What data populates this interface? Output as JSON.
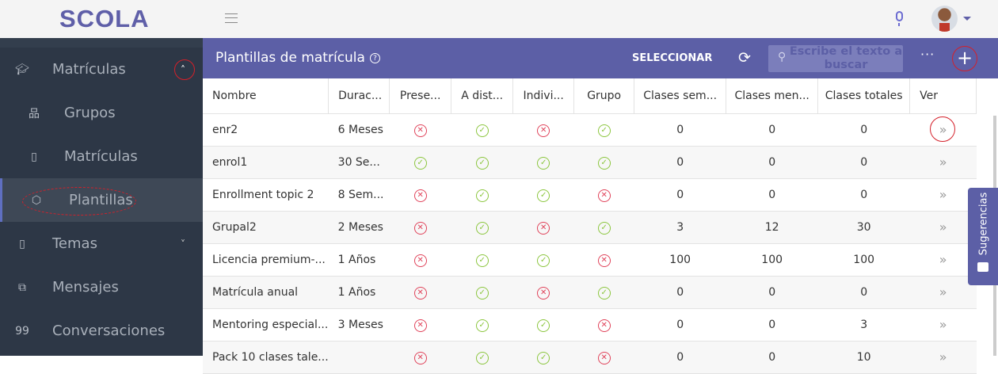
{
  "app": {
    "logo": "SCOLA"
  },
  "sidebar": {
    "items": [
      {
        "label": "Matrículas",
        "icon": "graduation-cap-icon",
        "glyph": "🎓︎"
      },
      {
        "label": "Grupos",
        "icon": "sitemap-icon",
        "glyph": "品"
      },
      {
        "label": "Matrículas",
        "icon": "book-icon",
        "glyph": "▯"
      },
      {
        "label": "Plantillas",
        "icon": "cube-icon",
        "glyph": "⬡"
      },
      {
        "label": "Temas",
        "icon": "book-icon",
        "glyph": "▯"
      },
      {
        "label": "Mensajes",
        "icon": "messages-icon",
        "glyph": "⧉"
      },
      {
        "label": "Conversaciones",
        "icon": "quote-icon",
        "glyph": "99"
      }
    ],
    "chev_up": "˄",
    "chev_down": "˅"
  },
  "toolbar": {
    "title": "Plantillas de matrícula",
    "help": "?",
    "select": "SELECCIONAR",
    "search_placeholder": "Escribe el texto a buscar",
    "more": "···",
    "add": "+",
    "refresh": "⟳",
    "search_icon": "⚲"
  },
  "table": {
    "headers": [
      "Nombre",
      "Durac...",
      "Prese...",
      "A dist...",
      "Indivi...",
      "Grupo",
      "Clases sem...",
      "Clases men...",
      "Clases totales",
      "Ver"
    ],
    "rows": [
      {
        "name": "enr2",
        "dur": "6 Meses",
        "pres": false,
        "dist": true,
        "indiv": false,
        "grupo": true,
        "sem": "0",
        "men": "0",
        "tot": "0"
      },
      {
        "name": "enrol1",
        "dur": "30 Se...",
        "pres": true,
        "dist": true,
        "indiv": true,
        "grupo": true,
        "sem": "0",
        "men": "0",
        "tot": "0"
      },
      {
        "name": "Enrollment topic 2",
        "dur": "8 Sem...",
        "pres": false,
        "dist": true,
        "indiv": true,
        "grupo": false,
        "sem": "0",
        "men": "0",
        "tot": "0"
      },
      {
        "name": "Grupal2",
        "dur": "2 Meses",
        "pres": false,
        "dist": true,
        "indiv": false,
        "grupo": true,
        "sem": "3",
        "men": "12",
        "tot": "30"
      },
      {
        "name": "Licencia premium-...",
        "dur": "1 Años",
        "pres": false,
        "dist": true,
        "indiv": true,
        "grupo": false,
        "sem": "100",
        "men": "100",
        "tot": "100"
      },
      {
        "name": "Matrícula anual",
        "dur": "1 Años",
        "pres": false,
        "dist": true,
        "indiv": false,
        "grupo": true,
        "sem": "0",
        "men": "0",
        "tot": "0"
      },
      {
        "name": "Mentoring especial...",
        "dur": "3 Meses",
        "pres": false,
        "dist": true,
        "indiv": true,
        "grupo": false,
        "sem": "0",
        "men": "0",
        "tot": "3"
      },
      {
        "name": "Pack 10 clases tale...",
        "dur": "",
        "pres": false,
        "dist": true,
        "indiv": true,
        "grupo": false,
        "sem": "0",
        "men": "0",
        "tot": "10"
      }
    ]
  },
  "feedback": {
    "label": "Sugerencias"
  },
  "colors": {
    "brand": "#5c5fa6",
    "sidebar": "#2d3746",
    "yes": "#8cc63f",
    "no": "#e0435a"
  }
}
